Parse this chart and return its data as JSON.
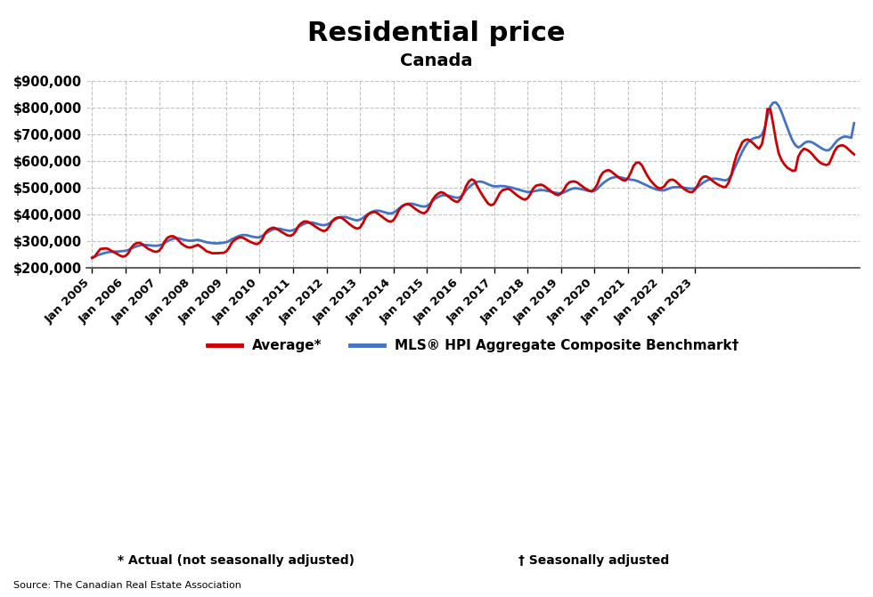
{
  "title": "Residential price",
  "subtitle": "Canada",
  "legend_label_avg": "Average*",
  "legend_label_hpi": "MLS® HPI Aggregate Composite Benchmark†",
  "footnote1": "* Actual (not seasonally adjusted)",
  "footnote2": "† Seasonally adjusted",
  "source": "Source: The Canadian Real Estate Association",
  "avg_color": "#cc0000",
  "hpi_color": "#4472c4",
  "ylim": [
    200000,
    900000
  ],
  "yticks": [
    200000,
    300000,
    400000,
    500000,
    600000,
    700000,
    800000,
    900000
  ],
  "avg_data": [
    237000,
    243000,
    258000,
    271000,
    272000,
    273000,
    270000,
    263000,
    258000,
    252000,
    246000,
    242000,
    245000,
    255000,
    275000,
    287000,
    293000,
    294000,
    289000,
    280000,
    272000,
    267000,
    262000,
    260000,
    264000,
    277000,
    299000,
    313000,
    318000,
    319000,
    313000,
    303000,
    291000,
    284000,
    278000,
    276000,
    278000,
    283000,
    286000,
    279000,
    271000,
    262000,
    259000,
    255000,
    255000,
    255000,
    256000,
    256000,
    261000,
    274000,
    294000,
    304000,
    311000,
    315000,
    313000,
    308000,
    301000,
    296000,
    292000,
    289000,
    294000,
    308000,
    330000,
    342000,
    348000,
    351000,
    347000,
    341000,
    334000,
    328000,
    322000,
    320000,
    325000,
    338000,
    358000,
    368000,
    374000,
    374000,
    369000,
    362000,
    355000,
    348000,
    342000,
    338000,
    342000,
    356000,
    375000,
    385000,
    389000,
    389000,
    384000,
    375000,
    366000,
    358000,
    351000,
    347000,
    351000,
    367000,
    389000,
    401000,
    407000,
    410000,
    407000,
    399000,
    391000,
    383000,
    376000,
    373000,
    379000,
    396000,
    418000,
    431000,
    437000,
    440000,
    436000,
    428000,
    420000,
    413000,
    407000,
    405000,
    413000,
    431000,
    456000,
    470000,
    479000,
    484000,
    481000,
    473000,
    465000,
    456000,
    450000,
    447000,
    458000,
    479000,
    507000,
    524000,
    532000,
    527000,
    506000,
    487000,
    470000,
    454000,
    440000,
    435000,
    440000,
    458000,
    479000,
    491000,
    494000,
    497000,
    492000,
    483000,
    474000,
    467000,
    460000,
    456000,
    461000,
    476000,
    497000,
    508000,
    511000,
    512000,
    507000,
    499000,
    491000,
    483000,
    476000,
    473000,
    479000,
    492000,
    511000,
    521000,
    524000,
    524000,
    519000,
    511000,
    503000,
    496000,
    490000,
    487000,
    496000,
    513000,
    541000,
    557000,
    564000,
    567000,
    562000,
    553000,
    545000,
    537000,
    530000,
    527000,
    537000,
    557000,
    583000,
    595000,
    595000,
    585000,
    564000,
    545000,
    529000,
    517000,
    506000,
    499000,
    499000,
    506000,
    521000,
    530000,
    531000,
    526000,
    516000,
    506000,
    497000,
    490000,
    485000,
    484000,
    493000,
    511000,
    532000,
    542000,
    543000,
    538000,
    529000,
    521000,
    514000,
    508000,
    504000,
    503000,
    519000,
    547000,
    591000,
    626000,
    649000,
    672000,
    680000,
    682000,
    675000,
    666000,
    655000,
    647000,
    665000,
    716000,
    796000,
    796000,
    741000,
    679000,
    630000,
    605000,
    589000,
    577000,
    570000,
    564000,
    566000,
    617000,
    636000,
    647000,
    644000,
    637000,
    627000,
    614000,
    603000,
    594000,
    589000,
    586000,
    590000,
    613000,
    638000,
    654000,
    659000,
    660000,
    654000,
    645000,
    635000,
    626000
  ],
  "hpi_data": [
    239000,
    242000,
    247000,
    251000,
    254000,
    257000,
    259000,
    260000,
    261000,
    261000,
    262000,
    263000,
    264000,
    267000,
    272000,
    277000,
    281000,
    284000,
    286000,
    286000,
    285000,
    284000,
    283000,
    283000,
    284000,
    287000,
    294000,
    300000,
    305000,
    309000,
    311000,
    311000,
    308000,
    305000,
    303000,
    302000,
    302000,
    304000,
    305000,
    302000,
    299000,
    296000,
    294000,
    293000,
    292000,
    292000,
    293000,
    294000,
    296000,
    300000,
    307000,
    312000,
    317000,
    321000,
    323000,
    323000,
    321000,
    318000,
    316000,
    314000,
    315000,
    320000,
    328000,
    334000,
    340000,
    345000,
    347000,
    347000,
    345000,
    342000,
    340000,
    339000,
    341000,
    346000,
    354000,
    360000,
    365000,
    369000,
    370000,
    370000,
    367000,
    364000,
    361000,
    360000,
    362000,
    367000,
    375000,
    381000,
    386000,
    390000,
    391000,
    390000,
    387000,
    383000,
    380000,
    378000,
    381000,
    387000,
    396000,
    403000,
    409000,
    413000,
    415000,
    414000,
    411000,
    408000,
    405000,
    404000,
    407000,
    414000,
    423000,
    430000,
    436000,
    440000,
    441000,
    440000,
    437000,
    434000,
    431000,
    430000,
    432000,
    440000,
    451000,
    460000,
    466000,
    471000,
    473000,
    472000,
    470000,
    467000,
    464000,
    463000,
    466000,
    477000,
    491000,
    502000,
    511000,
    518000,
    523000,
    524000,
    522000,
    518000,
    513000,
    509000,
    506000,
    506000,
    507000,
    507000,
    506000,
    504000,
    502000,
    499000,
    496000,
    493000,
    490000,
    487000,
    485000,
    485000,
    487000,
    489000,
    491000,
    492000,
    491000,
    489000,
    487000,
    484000,
    482000,
    480000,
    481000,
    483000,
    488000,
    493000,
    497000,
    499000,
    498000,
    496000,
    494000,
    491000,
    489000,
    487000,
    489000,
    496000,
    507000,
    517000,
    525000,
    532000,
    537000,
    540000,
    541000,
    540000,
    538000,
    535000,
    533000,
    531000,
    530000,
    527000,
    523000,
    518000,
    513000,
    508000,
    503000,
    499000,
    495000,
    492000,
    491000,
    491000,
    495000,
    499000,
    502000,
    503000,
    503000,
    502000,
    501000,
    499000,
    498000,
    497000,
    499000,
    504000,
    512000,
    520000,
    526000,
    531000,
    534000,
    535000,
    534000,
    532000,
    530000,
    528000,
    533000,
    547000,
    570000,
    593000,
    615000,
    637000,
    656000,
    671000,
    680000,
    686000,
    689000,
    691000,
    700000,
    725000,
    769000,
    806000,
    820000,
    821000,
    808000,
    785000,
    757000,
    728000,
    701000,
    677000,
    660000,
    652000,
    657000,
    667000,
    673000,
    674000,
    671000,
    665000,
    658000,
    651000,
    645000,
    641000,
    642000,
    652000,
    666000,
    678000,
    686000,
    691000,
    693000,
    691000,
    688000,
    743000
  ],
  "start_year": 2005,
  "start_month": 1,
  "x_years": [
    2005,
    2006,
    2007,
    2008,
    2009,
    2010,
    2011,
    2012,
    2013,
    2014,
    2015,
    2016,
    2017,
    2018,
    2019,
    2020,
    2021,
    2022,
    2023
  ],
  "background_color": "#ffffff",
  "grid_color": "#aaaaaa",
  "spine_color": "#444444"
}
